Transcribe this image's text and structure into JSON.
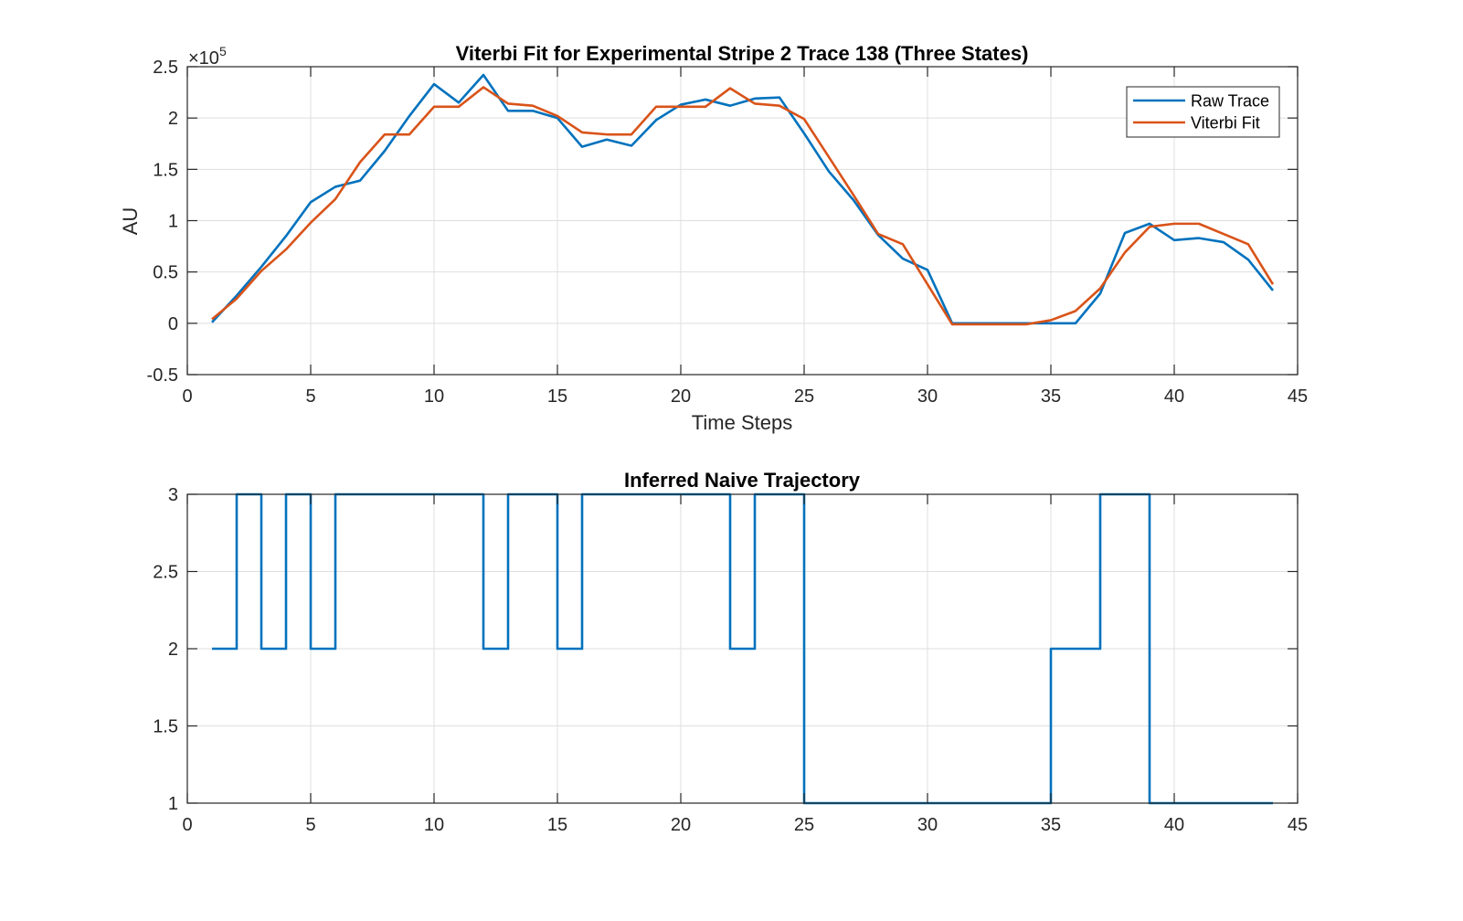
{
  "figure": {
    "background": "#ffffff",
    "axes_background": "#ffffff",
    "axis_color": "#262626",
    "grid_color": "#dfdfdf"
  },
  "chart_data": [
    {
      "type": "line",
      "title": "Viterbi Fit for Experimental Stripe 2 Trace 138 (Three States)",
      "xlabel": "Time Steps",
      "ylabel": "AU",
      "y_multiplier": {
        "base": "×10",
        "exponent": "5"
      },
      "xlim": [
        0,
        45
      ],
      "ylim": [
        -0.5,
        2.5
      ],
      "xticks": [
        0,
        5,
        10,
        15,
        20,
        25,
        30,
        35,
        40,
        45
      ],
      "yticks": [
        -0.5,
        0,
        0.5,
        1,
        1.5,
        2,
        2.5
      ],
      "grid": true,
      "legend": "top-right",
      "x": [
        1,
        2,
        3,
        4,
        5,
        6,
        7,
        8,
        9,
        10,
        11,
        12,
        13,
        14,
        15,
        16,
        17,
        18,
        19,
        20,
        21,
        22,
        23,
        24,
        25,
        26,
        27,
        28,
        29,
        30,
        31,
        32,
        33,
        34,
        35,
        36,
        37,
        38,
        39,
        40,
        41,
        42,
        43,
        44
      ],
      "series": [
        {
          "name": "Raw Trace",
          "color": "#0072BD",
          "values": [
            0.01,
            0.27,
            0.55,
            0.85,
            1.18,
            1.33,
            1.39,
            1.68,
            2.02,
            2.33,
            2.15,
            2.42,
            2.07,
            2.07,
            2.0,
            1.72,
            1.79,
            1.73,
            1.98,
            2.13,
            2.18,
            2.12,
            2.19,
            2.2,
            1.85,
            1.48,
            1.2,
            0.86,
            0.63,
            0.52,
            0.0,
            0.0,
            0.0,
            0.0,
            0.0,
            0.0,
            0.29,
            0.88,
            0.97,
            0.81,
            0.83,
            0.79,
            0.62,
            0.32
          ]
        },
        {
          "name": "Viterbi Fit",
          "color": "#D95319",
          "values": [
            0.04,
            0.24,
            0.51,
            0.72,
            0.98,
            1.21,
            1.57,
            1.84,
            1.84,
            2.11,
            2.11,
            2.3,
            2.14,
            2.12,
            2.02,
            1.86,
            1.84,
            1.84,
            2.11,
            2.11,
            2.11,
            2.29,
            2.14,
            2.12,
            1.99,
            1.62,
            1.25,
            0.87,
            0.77,
            0.38,
            -0.01,
            -0.01,
            -0.01,
            -0.01,
            0.03,
            0.12,
            0.34,
            0.69,
            0.94,
            0.97,
            0.97,
            0.87,
            0.77,
            0.38
          ]
        }
      ]
    },
    {
      "type": "line",
      "stairs": true,
      "title": "Inferred Naive Trajectory",
      "xlim": [
        0,
        45
      ],
      "ylim": [
        1,
        3
      ],
      "xticks": [
        0,
        5,
        10,
        15,
        20,
        25,
        30,
        35,
        40,
        45
      ],
      "yticks": [
        1,
        1.5,
        2,
        2.5,
        3
      ],
      "grid": true,
      "x": [
        1,
        2,
        3,
        4,
        5,
        6,
        7,
        8,
        9,
        10,
        11,
        12,
        13,
        14,
        15,
        16,
        17,
        18,
        19,
        20,
        21,
        22,
        23,
        24,
        25,
        26,
        27,
        28,
        29,
        30,
        31,
        32,
        33,
        34,
        35,
        36,
        37,
        38,
        39,
        40,
        41,
        42,
        43,
        44
      ],
      "series": [
        {
          "color": "#0072BD",
          "values": [
            2,
            3,
            2,
            3,
            2,
            3,
            3,
            3,
            3,
            3,
            3,
            2,
            3,
            3,
            2,
            3,
            3,
            3,
            3,
            3,
            3,
            2,
            3,
            3,
            1,
            1,
            1,
            1,
            1,
            1,
            1,
            1,
            1,
            1,
            2,
            2,
            3,
            3,
            1,
            1,
            1,
            1,
            1,
            1
          ]
        }
      ]
    }
  ]
}
